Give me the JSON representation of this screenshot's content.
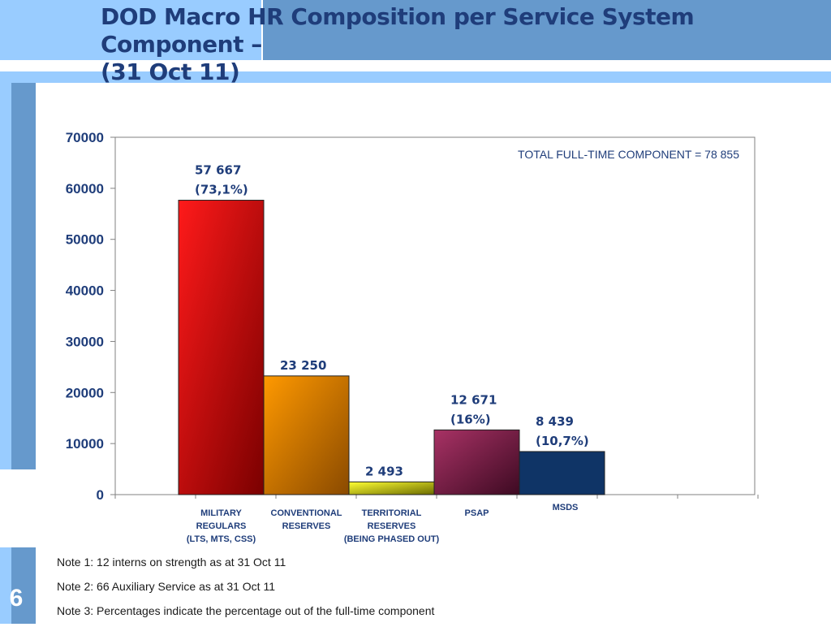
{
  "slide": {
    "title_line1": "DOD Macro HR Composition per Service System Component –",
    "title_line2": "(31 Oct 11)",
    "slide_number": "6",
    "notes": [
      "Note 1: 12 interns on strength as at 31 Oct 11",
      "Note 2: 66 Auxiliary Service as at 31 Oct 11",
      "Note 3:  Percentages indicate the percentage out of the full-time component"
    ]
  },
  "chart_data": {
    "type": "bar",
    "annotation": "TOTAL FULL-TIME COMPONENT = 78 855",
    "ylim": [
      0,
      70000
    ],
    "yticks": [
      0,
      10000,
      20000,
      30000,
      40000,
      50000,
      60000,
      70000
    ],
    "grid": false,
    "categories": [
      [
        "MILITARY",
        "REGULARS",
        "(LTS, MTS, CSS)"
      ],
      [
        "CONVENTIONAL",
        "RESERVES"
      ],
      [
        "TERRITORIAL",
        "RESERVES",
        "(BEING PHASED OUT)"
      ],
      [
        "PSAP"
      ],
      [
        "MSDS"
      ]
    ],
    "values": [
      57667,
      23250,
      2493,
      12671,
      8439
    ],
    "data_labels": [
      [
        "57 667",
        "(73,1%)"
      ],
      [
        "23 250"
      ],
      [
        "2 493"
      ],
      [
        "12 671",
        "(16%)"
      ],
      [
        "8 439",
        "(10,7%)"
      ]
    ],
    "colors": [
      [
        "#ff1a1a",
        "#7a0000"
      ],
      [
        "#ff9900",
        "#8a4a00"
      ],
      [
        "#ffff33",
        "#6b6b00"
      ],
      [
        "#a83265",
        "#3d0a22"
      ],
      [
        "#0f3466",
        "#0f3466"
      ]
    ]
  }
}
